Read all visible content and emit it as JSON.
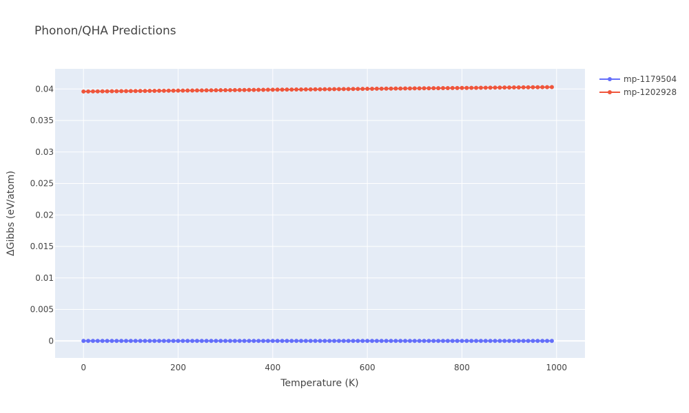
{
  "chart_data": {
    "type": "line",
    "title": "Phonon/QHA Predictions",
    "xlabel": "Temperature (K)",
    "ylabel": "ΔGibbs (eV/atom)",
    "xlim": [
      -60,
      1060
    ],
    "ylim": [
      -0.0027,
      0.0432
    ],
    "x_ticks": [
      0,
      200,
      400,
      600,
      800,
      1000
    ],
    "x_tick_labels": [
      "0",
      "200",
      "400",
      "600",
      "800",
      "1000"
    ],
    "y_ticks": [
      0,
      0.005,
      0.01,
      0.015,
      0.02,
      0.025,
      0.03,
      0.035,
      0.04
    ],
    "y_tick_labels": [
      "0",
      "0.005",
      "0.01",
      "0.015",
      "0.02",
      "0.025",
      "0.03",
      "0.035",
      "0.04"
    ],
    "grid": true,
    "legend_position": "top-right",
    "x": {
      "start": 0,
      "step": 10,
      "count": 100
    },
    "series": [
      {
        "name": "mp-1179504",
        "color": "#636efa",
        "y_start": 0.0,
        "y_end": 0.0
      },
      {
        "name": "mp-1202928",
        "color": "#ef553b",
        "y_start": 0.0396,
        "y_end": 0.0403
      }
    ]
  }
}
